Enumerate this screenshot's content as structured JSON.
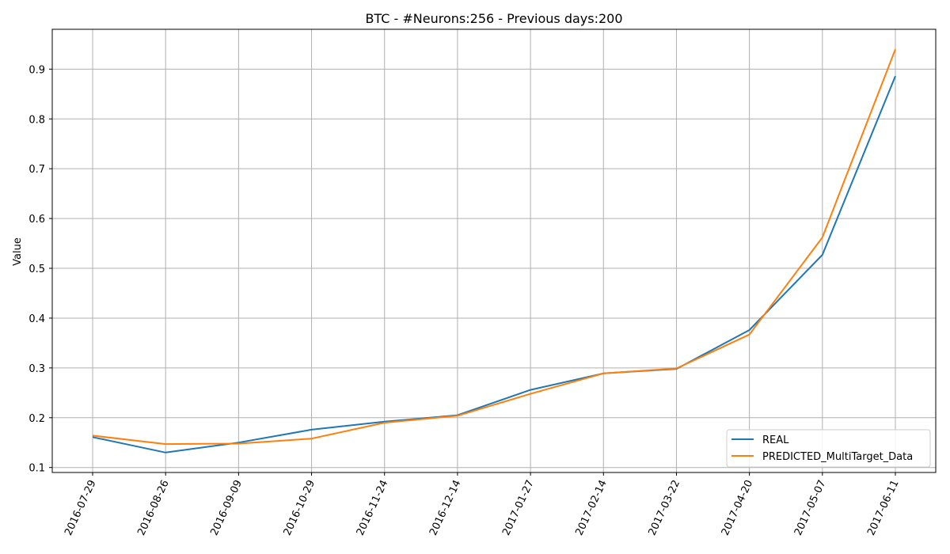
{
  "chart_data": {
    "type": "line",
    "title": "BTC - #Neurons:256 - Previous days:200",
    "xlabel": "",
    "ylabel": "Value",
    "categories": [
      "2016-07-29",
      "2016-08-26",
      "2016-09-09",
      "2016-10-29",
      "2016-11-24",
      "2016-12-14",
      "2017-01-27",
      "2017-02-14",
      "2017-03-22",
      "2017-04-20",
      "2017-05-07",
      "2017-06-11"
    ],
    "yticks": [
      0.1,
      0.2,
      0.3,
      0.4,
      0.5,
      0.6,
      0.7,
      0.8,
      0.9
    ],
    "ylim": [
      0.09,
      0.98
    ],
    "grid": true,
    "legend_position": "lower right",
    "series": [
      {
        "name": "REAL",
        "color": "#1f77b4",
        "values": [
          0.161,
          0.13,
          0.15,
          0.176,
          0.192,
          0.205,
          0.256,
          0.289,
          0.298,
          0.376,
          0.527,
          0.886
        ]
      },
      {
        "name": "PREDICTED_MultiTarget_Data",
        "color": "#ff7f0e",
        "values": [
          0.164,
          0.147,
          0.148,
          0.158,
          0.19,
          0.204,
          0.248,
          0.289,
          0.299,
          0.367,
          0.562,
          0.94
        ]
      }
    ]
  }
}
